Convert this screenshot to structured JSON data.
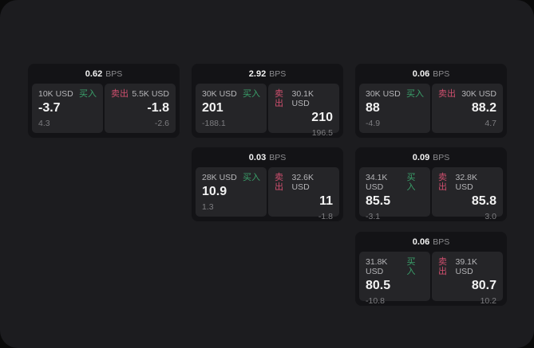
{
  "labels": {
    "buy": "买入",
    "sell": "卖出",
    "bps": "BPS"
  },
  "colors": {
    "outer_bg": "#0a0a0a",
    "panel_bg": "#1c1c1f",
    "card_bg": "#131316",
    "pane_bg": "#252528",
    "buy": "#3aa06a",
    "sell": "#cf4f6e",
    "value_text": "#f2f2f2",
    "label_text": "#b5b5b8",
    "unit_text": "#8d8d90",
    "muted_text": "#7d7d80"
  },
  "cards": [
    {
      "row": 1,
      "col": 1,
      "bps": "0.62",
      "buy": {
        "amount": "10K USD",
        "value": "-3.7",
        "delta": "4.3"
      },
      "sell": {
        "amount": "5.5K USD",
        "value": "-1.8",
        "delta": "-2.6"
      }
    },
    {
      "row": 1,
      "col": 2,
      "bps": "2.92",
      "buy": {
        "amount": "30K USD",
        "value": "201",
        "delta": "-188.1"
      },
      "sell": {
        "amount": "30.1K USD",
        "value": "210",
        "delta": "196.5"
      }
    },
    {
      "row": 1,
      "col": 3,
      "bps": "0.06",
      "buy": {
        "amount": "30K USD",
        "value": "88",
        "delta": "-4.9"
      },
      "sell": {
        "amount": "30K USD",
        "value": "88.2",
        "delta": "4.7"
      }
    },
    {
      "row": 2,
      "col": 2,
      "bps": "0.03",
      "buy": {
        "amount": "28K USD",
        "value": "10.9",
        "delta": "1.3"
      },
      "sell": {
        "amount": "32.6K USD",
        "value": "11",
        "delta": "-1.8"
      }
    },
    {
      "row": 2,
      "col": 3,
      "bps": "0.09",
      "buy": {
        "amount": "34.1K USD",
        "value": "85.5",
        "delta": "-3.1"
      },
      "sell": {
        "amount": "32.8K USD",
        "value": "85.8",
        "delta": "3.0"
      }
    },
    {
      "row": 3,
      "col": 3,
      "bps": "0.06",
      "buy": {
        "amount": "31.8K USD",
        "value": "80.5",
        "delta": "-10.8"
      },
      "sell": {
        "amount": "39.1K USD",
        "value": "80.7",
        "delta": "10.2"
      }
    }
  ]
}
